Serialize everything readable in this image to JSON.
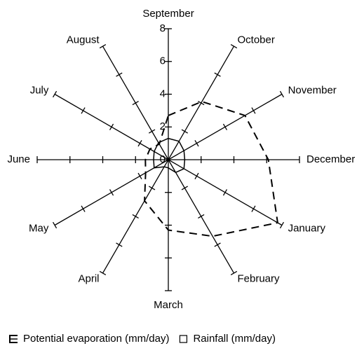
{
  "chart_data": {
    "type": "radar",
    "categories": [
      "September",
      "October",
      "November",
      "December",
      "January",
      "February",
      "March",
      "April",
      "May",
      "June",
      "July",
      "August"
    ],
    "rlim": [
      0,
      8
    ],
    "rticks": [
      0,
      2,
      4,
      6,
      8
    ],
    "series": [
      {
        "name": "Potential evaporation (mm/day)",
        "color": "#000000",
        "line_style": "dashed",
        "values": [
          2.7,
          4.1,
          5.4,
          6.1,
          7.7,
          5.4,
          4.3,
          2.9,
          1.6,
          1.4,
          1.3,
          1.1
        ]
      },
      {
        "name": "Rainfall (mm/day)",
        "color": "#000000",
        "line_style": "solid",
        "values": [
          1.3,
          1.3,
          1.1,
          1.0,
          1.1,
          0.9,
          0.5,
          0.5,
          1.0,
          0.9,
          1.0,
          1.2
        ]
      }
    ]
  }
}
